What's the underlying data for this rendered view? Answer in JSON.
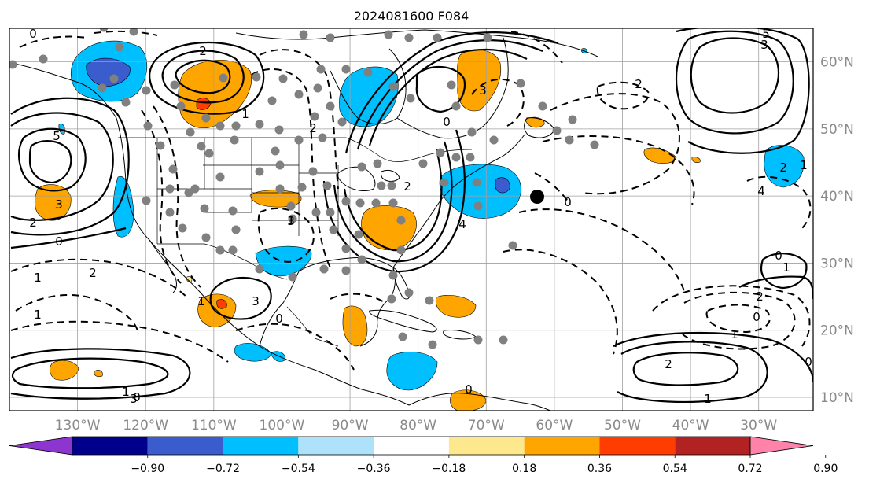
{
  "title": "2024081600 F084",
  "map": {
    "lon_range": [
      -140,
      -22
    ],
    "lat_range": [
      8,
      65
    ],
    "lon_ticks": [
      "130°W",
      "120°W",
      "110°W",
      "100°W",
      "90°W",
      "80°W",
      "70°W",
      "60°W",
      "50°W",
      "40°W",
      "30°W"
    ],
    "lat_ticks": [
      "60°N",
      "50°N",
      "40°N",
      "30°N",
      "20°N",
      "10°N"
    ],
    "grid_color": "#a0a0a0",
    "contour_labels": [
      "0",
      "2",
      "5",
      "3",
      "2",
      "0",
      "1",
      "2",
      "1",
      "1",
      "3",
      "3",
      "1",
      "2",
      "0",
      "3",
      "2",
      "0",
      "3",
      "4",
      "0",
      "2",
      "3",
      "5",
      "4",
      "1",
      "2",
      "0",
      "1",
      "2",
      "0",
      "1",
      "0",
      "2",
      "1",
      "1",
      "1",
      "0",
      "0"
    ]
  },
  "colorbar": {
    "tick_labels": [
      "−0.90",
      "−0.72",
      "−0.54",
      "−0.36",
      "−0.18",
      "0.18",
      "0.36",
      "0.54",
      "0.72",
      "0.90"
    ],
    "colors": [
      "#8c35cf",
      "#00008b",
      "#3a5ccc",
      "#00bfff",
      "#aee2fb",
      "#ffffff",
      "#fee88e",
      "#ffa500",
      "#ff3d00",
      "#b22222",
      "#ff82ab"
    ]
  }
}
